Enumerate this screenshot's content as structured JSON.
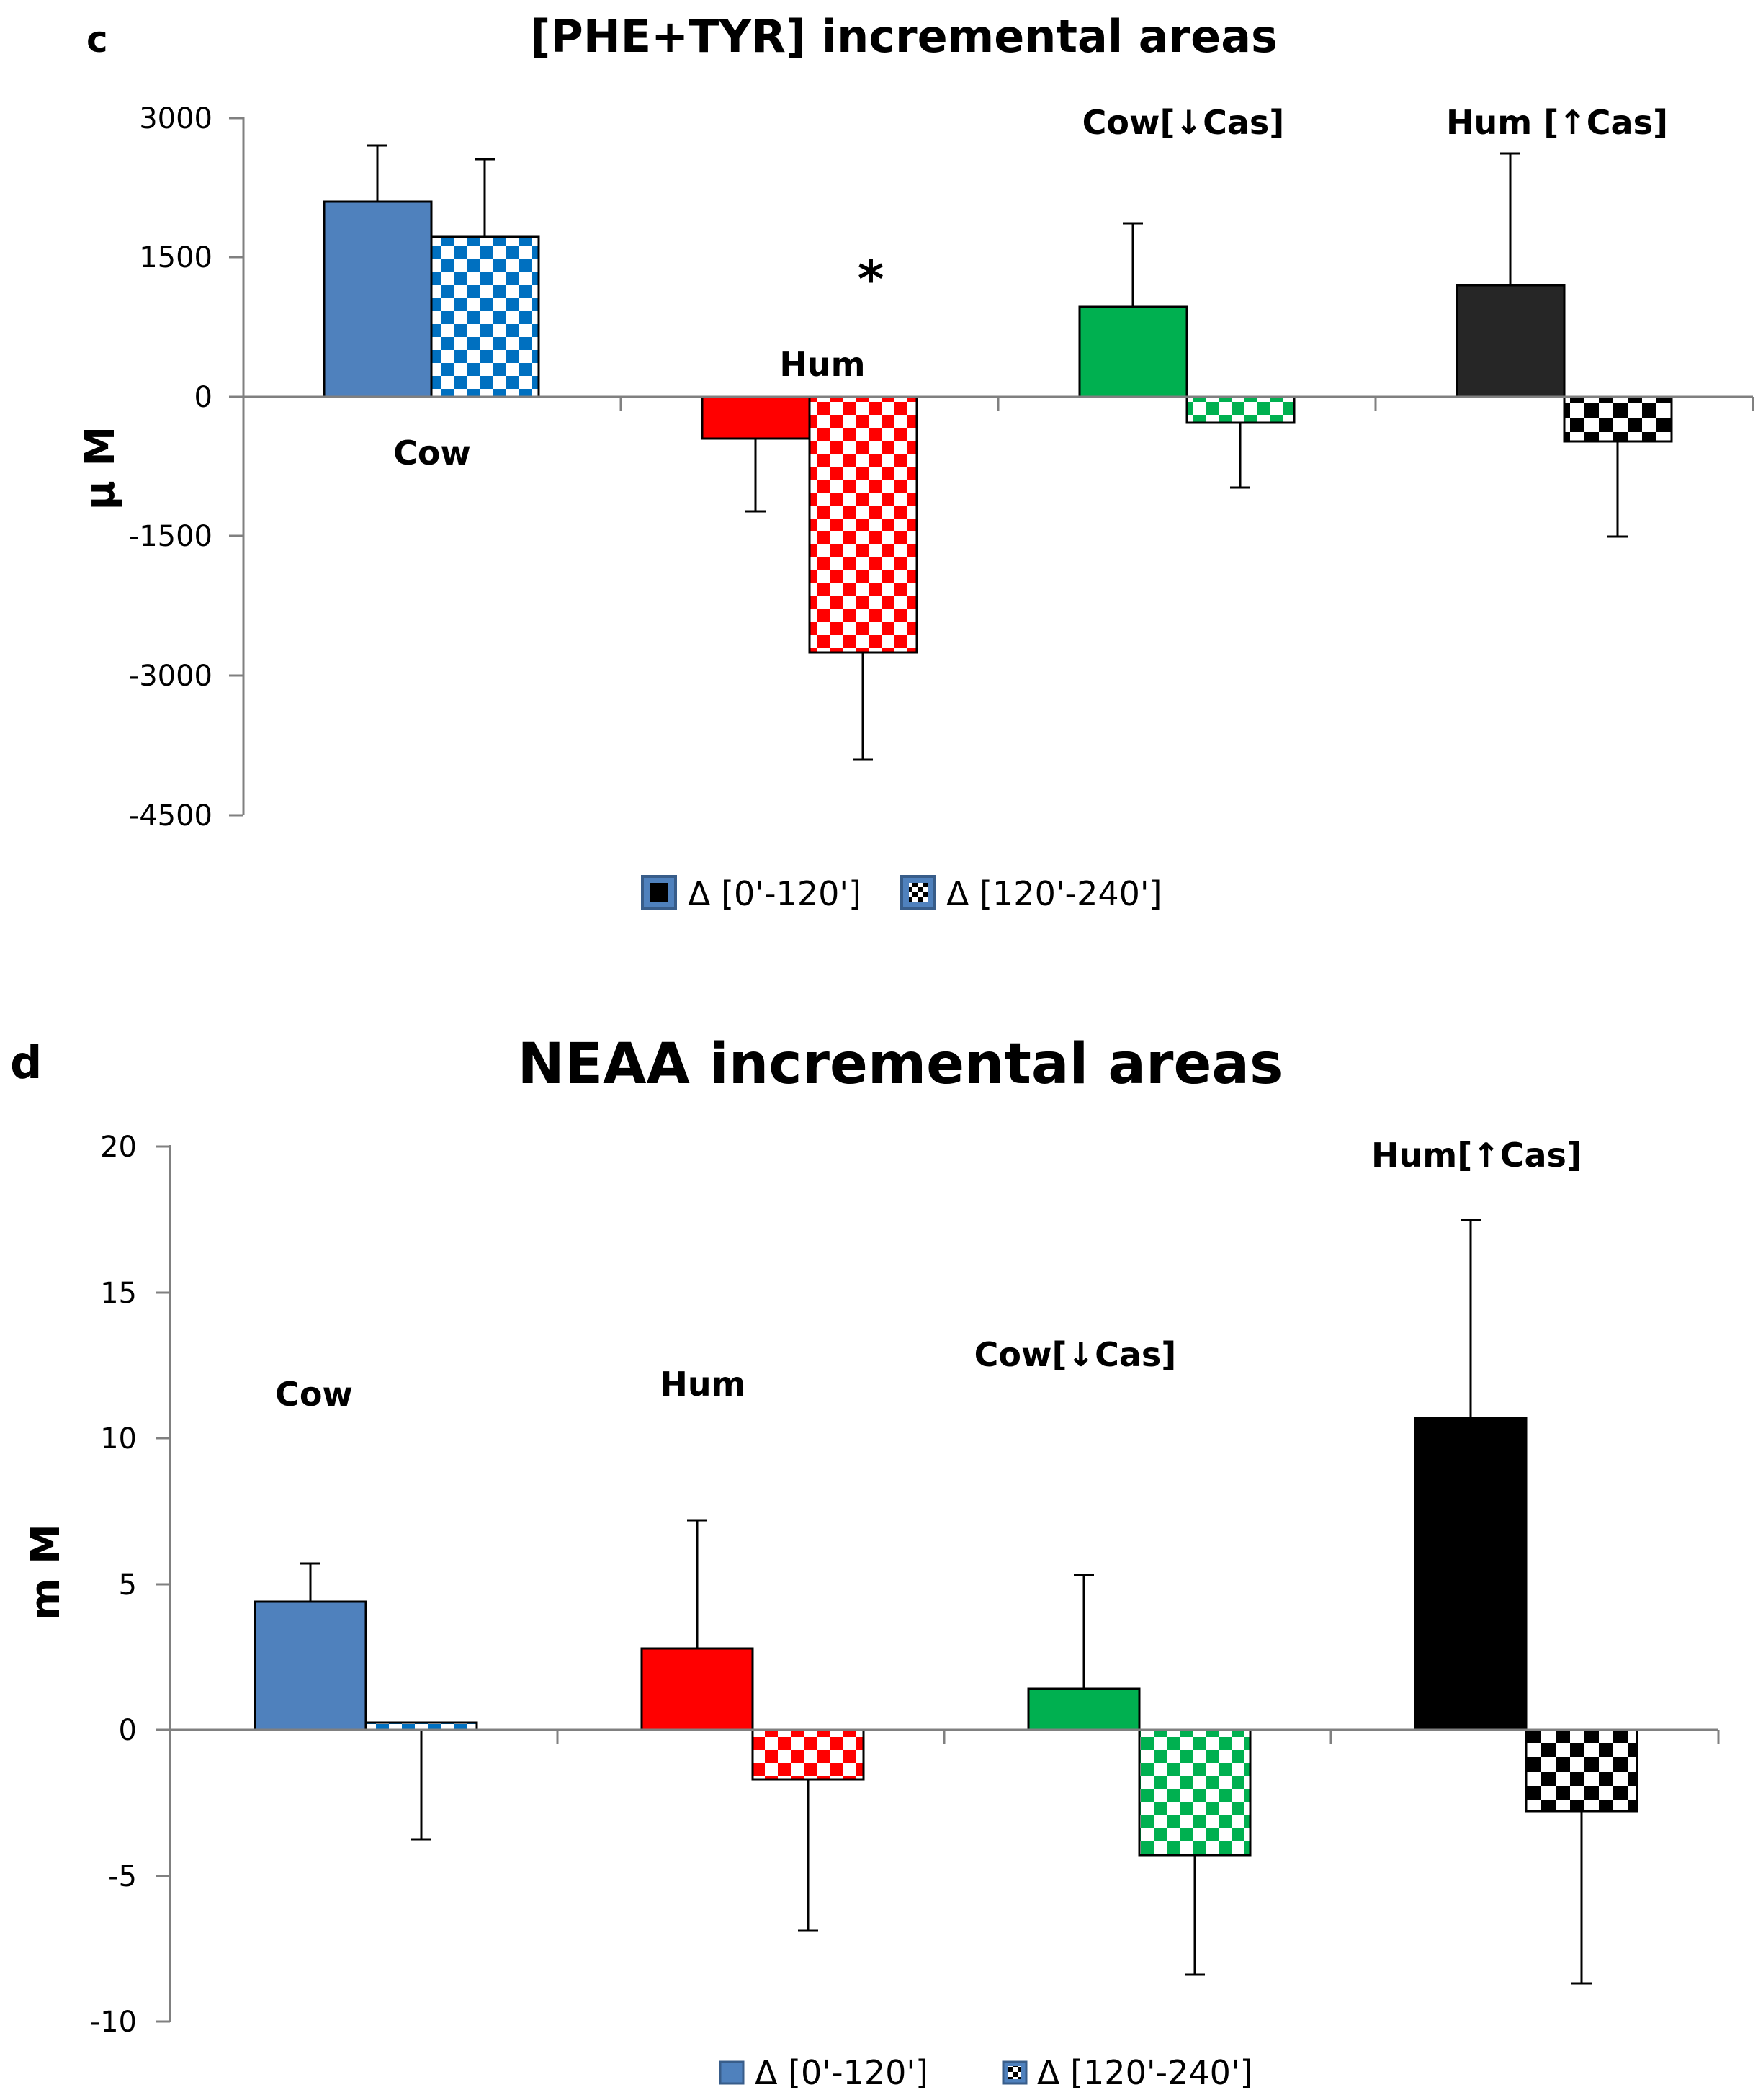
{
  "colors": {
    "cow": "#4f81bd",
    "hum": "#ff0000",
    "cow_low_cas": "#00b050",
    "hum_high_cas_c": "#262626",
    "hum_high_cas_d": "#000000",
    "cow_check_c": "#0070c0",
    "legend_border": "#385d8a"
  },
  "chart_data": [
    {
      "type": "bar",
      "panel": "c",
      "title": "[PHE+TYR] incremental areas",
      "xlabel": "",
      "ylabel": "μ M",
      "ylim": [
        -4500,
        3000
      ],
      "yticks": [
        3000,
        1500,
        0,
        -1500,
        -3000,
        -4500
      ],
      "tick_labels": [
        "3000",
        "1500",
        "0",
        "-1500",
        "-3000",
        "-4500"
      ],
      "categories": [
        "Cow",
        "Hum",
        "Cow[↓Cas]",
        "Hum [↑Cas]"
      ],
      "series": [
        {
          "name": "Δ [0'-120']",
          "values": [
            2100,
            -450,
            970,
            1200
          ],
          "err": [
            600,
            780,
            900,
            1420
          ]
        },
        {
          "name": "Δ [120'-240']",
          "values": [
            1720,
            -2750,
            -280,
            -480
          ],
          "err": [
            840,
            1150,
            700,
            1020
          ]
        }
      ],
      "legend": [
        "Δ [0'-120']",
        "Δ [120'-240']"
      ],
      "legend_position": "bottom",
      "annotations": [
        {
          "text": "*",
          "category": "Hum"
        }
      ]
    },
    {
      "type": "bar",
      "panel": "d",
      "title": "NEAA incremental areas",
      "xlabel": "",
      "ylabel": "m M",
      "ylim": [
        -10,
        20
      ],
      "yticks": [
        20,
        15,
        10,
        5,
        0,
        -5,
        -10
      ],
      "tick_labels": [
        "20",
        "15",
        "10",
        "5",
        "0",
        "-5",
        "-10"
      ],
      "categories": [
        "Cow",
        "Hum",
        "Cow[↓Cas]",
        "Hum[↑Cas]"
      ],
      "series": [
        {
          "name": "Δ [0'-120']",
          "values": [
            4.4,
            2.8,
            1.4,
            10.7
          ],
          "err": [
            1.3,
            4.4,
            3.9,
            6.8
          ]
        },
        {
          "name": "Δ [120'-240']",
          "values": [
            0.25,
            -1.7,
            -4.3,
            -2.8
          ],
          "err": [
            4.0,
            5.2,
            4.1,
            5.9
          ]
        }
      ],
      "legend": [
        "Δ [0'-120']",
        "Δ [120'-240']"
      ],
      "legend_position": "bottom"
    }
  ]
}
